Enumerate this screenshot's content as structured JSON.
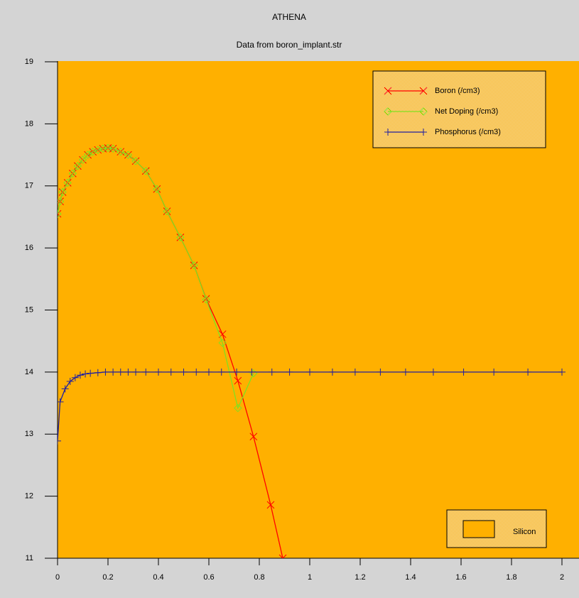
{
  "chart_data": {
    "type": "line",
    "title": "ATHENA",
    "subtitle": "Data from boron_implant.str",
    "background": "#ffb000",
    "xlim": [
      0,
      2
    ],
    "ylim": [
      11,
      19
    ],
    "xticks": [
      0,
      0.2,
      0.4,
      0.6,
      0.8,
      1,
      1.2,
      1.4,
      1.6,
      1.8,
      2
    ],
    "yticks": [
      11,
      12,
      13,
      14,
      15,
      16,
      17,
      18,
      19
    ],
    "legend": "top-right",
    "series": [
      {
        "name": "Boron (/cm3)",
        "color": "#ff0000",
        "marker": "x",
        "x": [
          0,
          0.01,
          0.02,
          0.04,
          0.06,
          0.08,
          0.1,
          0.12,
          0.14,
          0.16,
          0.18,
          0.2,
          0.22,
          0.25,
          0.28,
          0.31,
          0.35,
          0.394,
          0.434,
          0.487,
          0.541,
          0.589,
          0.654,
          0.715,
          0.777,
          0.845,
          0.893
        ],
        "values": [
          16.55,
          16.75,
          16.9,
          17.05,
          17.2,
          17.32,
          17.42,
          17.5,
          17.55,
          17.58,
          17.6,
          17.61,
          17.6,
          17.55,
          17.5,
          17.4,
          17.24,
          16.95,
          16.59,
          16.17,
          15.72,
          15.18,
          14.61,
          13.86,
          12.96,
          11.86,
          11.0
        ]
      },
      {
        "name": "Net Doping (/cm3)",
        "color": "#80e020",
        "marker": "diamond",
        "x": [
          0,
          0.01,
          0.02,
          0.04,
          0.06,
          0.08,
          0.1,
          0.12,
          0.14,
          0.16,
          0.18,
          0.2,
          0.22,
          0.25,
          0.28,
          0.31,
          0.35,
          0.394,
          0.434,
          0.487,
          0.541,
          0.589,
          0.654,
          0.715,
          0.777
        ],
        "values": [
          16.55,
          16.75,
          16.9,
          17.05,
          17.2,
          17.32,
          17.42,
          17.5,
          17.55,
          17.58,
          17.6,
          17.61,
          17.6,
          17.55,
          17.5,
          17.4,
          17.24,
          16.95,
          16.59,
          16.17,
          15.72,
          15.17,
          14.47,
          13.42,
          13.98
        ]
      },
      {
        "name": "Phosphorus (/cm3)",
        "color": "#2020a0",
        "marker": "plus",
        "x": [
          0,
          0.01,
          0.03,
          0.05,
          0.07,
          0.09,
          0.11,
          0.13,
          0.16,
          0.19,
          0.22,
          0.25,
          0.28,
          0.31,
          0.35,
          0.4,
          0.45,
          0.5,
          0.55,
          0.6,
          0.65,
          0.71,
          0.77,
          0.85,
          0.92,
          1.0,
          1.09,
          1.18,
          1.28,
          1.38,
          1.49,
          1.61,
          1.73,
          1.865,
          2
        ],
        "values": [
          12.89,
          13.52,
          13.73,
          13.85,
          13.91,
          13.95,
          13.97,
          13.98,
          13.99,
          14.0,
          14.0,
          14.0,
          14.0,
          14.0,
          14.0,
          14.0,
          14.0,
          14.0,
          14.0,
          14.0,
          14.0,
          14.0,
          14.0,
          14.0,
          14.0,
          14.0,
          14.0,
          14.0,
          14.0,
          14.0,
          14.0,
          14.0,
          14.0,
          14.0,
          14.0
        ]
      }
    ],
    "materials": [
      {
        "name": "Silicon",
        "color": "#ffb000"
      }
    ]
  }
}
